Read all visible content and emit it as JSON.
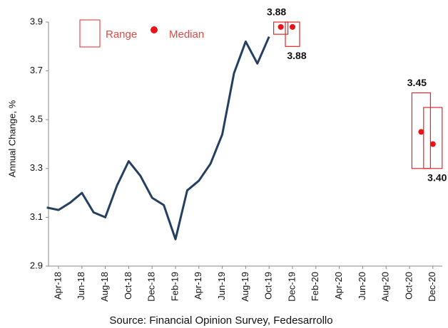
{
  "chart_data": {
    "type": "line",
    "ylabel": "Annual Change, %",
    "source": "Source: Financial Opinion Survey, Fedesarrollo",
    "categories": [
      null,
      "Apr-18",
      null,
      "Jun-18",
      null,
      "Aug-18",
      null,
      "Oct-18",
      null,
      "Dec-18",
      null,
      "Feb-19",
      null,
      "Apr-19",
      null,
      "Jun-19",
      null,
      "Aug-19",
      null,
      "Oct-19",
      null,
      "Dec-19",
      null,
      "Feb-20",
      null,
      "Apr-20",
      null,
      "Jun-20",
      null,
      "Aug-20",
      null,
      "Oct-20",
      null,
      "Dec-20"
    ],
    "values": [
      3.14,
      3.13,
      3.16,
      3.2,
      3.12,
      3.1,
      3.23,
      3.33,
      3.27,
      3.18,
      3.15,
      3.01,
      3.21,
      3.25,
      3.32,
      3.44,
      3.69,
      3.82,
      3.73,
      3.84,
      null,
      null,
      null,
      null,
      null,
      null,
      null,
      null,
      null,
      null,
      null,
      null,
      null,
      null
    ],
    "color": "#243f60",
    "ranges": {
      "name": "Range",
      "color": "#e0282a",
      "low": [
        null,
        null,
        null,
        null,
        null,
        null,
        null,
        null,
        null,
        null,
        null,
        null,
        null,
        null,
        null,
        null,
        null,
        null,
        null,
        null,
        3.85,
        3.8,
        null,
        null,
        null,
        null,
        null,
        null,
        null,
        null,
        null,
        null,
        3.3,
        3.3
      ],
      "high": [
        null,
        null,
        null,
        null,
        null,
        null,
        null,
        null,
        null,
        null,
        null,
        null,
        null,
        null,
        null,
        null,
        null,
        null,
        null,
        null,
        3.9,
        3.9,
        null,
        null,
        null,
        null,
        null,
        null,
        null,
        null,
        null,
        null,
        3.61,
        3.55
      ]
    },
    "medians": {
      "name": "Median",
      "color": "#e8141a",
      "values": [
        null,
        null,
        null,
        null,
        null,
        null,
        null,
        null,
        null,
        null,
        null,
        null,
        null,
        null,
        null,
        null,
        null,
        null,
        null,
        null,
        3.88,
        3.88,
        null,
        null,
        null,
        null,
        null,
        null,
        null,
        null,
        null,
        null,
        3.45,
        3.4
      ],
      "value_labels": [
        null,
        null,
        null,
        null,
        null,
        null,
        null,
        null,
        null,
        null,
        null,
        null,
        null,
        null,
        null,
        null,
        null,
        null,
        null,
        null,
        "3.88",
        "3.88",
        null,
        null,
        null,
        null,
        null,
        null,
        null,
        null,
        null,
        null,
        "3.45",
        "3.40"
      ]
    },
    "ylim": [
      2.9,
      3.9
    ],
    "yticks": [
      2.9,
      3.1,
      3.3,
      3.5,
      3.7,
      3.9
    ],
    "grid": false
  }
}
